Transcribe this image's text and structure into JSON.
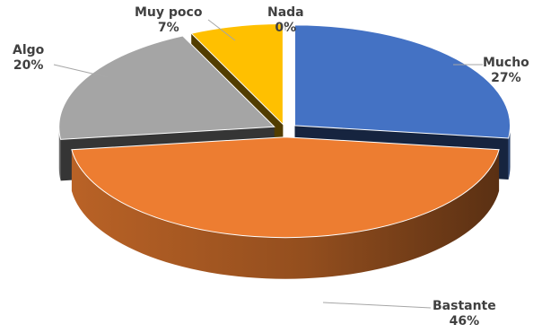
{
  "chart_data": {
    "type": "pie",
    "style": "3d-exploded",
    "slices": [
      {
        "key": "mucho",
        "label": "Mucho",
        "value": 27,
        "display": "27%",
        "color": "#4472C4"
      },
      {
        "key": "bastante",
        "label": "Bastante",
        "value": 46,
        "display": "46%",
        "color": "#ED7D31"
      },
      {
        "key": "algo",
        "label": "Algo",
        "value": 20,
        "display": "20%",
        "color": "#A5A5A5"
      },
      {
        "key": "muypoco",
        "label": "Muy poco",
        "value": 7,
        "display": "7%",
        "color": "#FFC000"
      },
      {
        "key": "nada",
        "label": "Nada",
        "value": 0,
        "display": "0%",
        "color": "#5B9BD5"
      }
    ]
  }
}
